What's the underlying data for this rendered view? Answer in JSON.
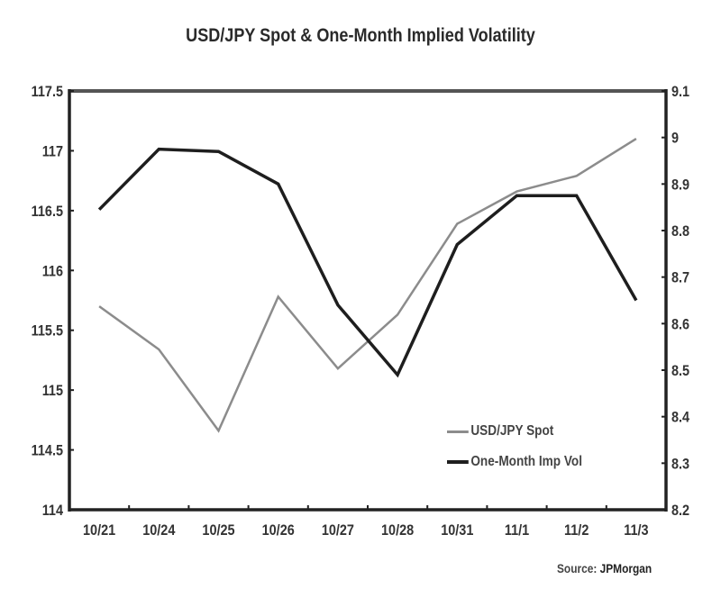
{
  "chart_data": {
    "type": "line",
    "title": "USD/JPY Spot & One-Month Implied Volatility",
    "categories": [
      "10/21",
      "10/24",
      "10/25",
      "10/26",
      "10/27",
      "10/28",
      "10/31",
      "11/1",
      "11/2",
      "11/3"
    ],
    "series": [
      {
        "name": "USD/JPY Spot",
        "axis": "left",
        "color": "#8c8c8c",
        "values": [
          115.7,
          115.34,
          114.66,
          115.78,
          115.18,
          115.63,
          116.39,
          116.66,
          116.79,
          117.1
        ]
      },
      {
        "name": "One-Month Imp Vol",
        "axis": "right",
        "color": "#1e1e1e",
        "values": [
          8.845,
          8.975,
          8.97,
          8.9,
          8.64,
          8.49,
          8.77,
          8.875,
          8.875,
          8.65
        ]
      }
    ],
    "left_axis": {
      "ylim": [
        114,
        117.5
      ],
      "ticks": [
        "114",
        "114.5",
        "115",
        "115.5",
        "116",
        "116.5",
        "117",
        "117.5"
      ]
    },
    "right_axis": {
      "ylim": [
        8.2,
        9.1
      ],
      "ticks": [
        "8.2",
        "8.3",
        "8.4",
        "8.5",
        "8.6",
        "8.7",
        "8.8",
        "8.9",
        "9",
        "9.1"
      ]
    },
    "xlabel": "",
    "grid": false,
    "legend_position": "lower right inside"
  },
  "header": {
    "title": "USD/JPY Spot & One-Month Implied Volatility"
  },
  "legend": {
    "items": [
      {
        "label": "USD/JPY Spot",
        "color": "#8c8c8c"
      },
      {
        "label": "One-Month Imp Vol",
        "color": "#1e1e1e"
      }
    ]
  },
  "footer": {
    "source_label": "Source:",
    "source_name": "JPMorgan"
  }
}
